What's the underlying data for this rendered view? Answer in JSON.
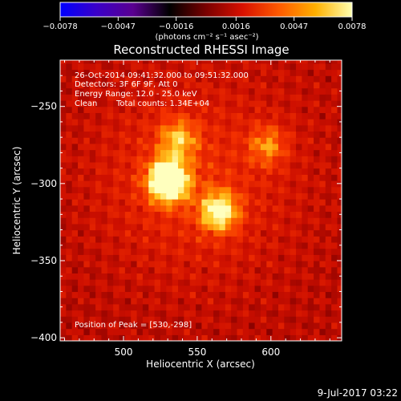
{
  "chart_data": {
    "type": "heatmap",
    "title": "Reconstructed RHESSI Image",
    "xlabel": "Heliocentric X (arcsec)",
    "ylabel": "Heliocentric Y (arcsec)",
    "xlim": [
      457,
      648
    ],
    "ylim": [
      -402,
      -220
    ],
    "x_ticks": [
      500,
      550,
      600
    ],
    "y_ticks": [
      -250,
      -300,
      -350,
      -400
    ],
    "colorbar": {
      "min": -0.0078,
      "max": 0.0078,
      "tick_values": [
        -0.0078,
        -0.0047,
        -0.0016,
        0.0016,
        0.0047,
        0.0078
      ],
      "tick_labels": [
        "−0.0078",
        "−0.0047",
        "−0.0016",
        "0.0016",
        "0.0047",
        "0.0078"
      ],
      "unit_label": "(photons cm⁻² s⁻¹ asec⁻²)"
    },
    "colormap": [
      "#0000ff",
      "#3a00c8",
      "#5a0090",
      "#000000",
      "#7a0000",
      "#d81000",
      "#ff5a00",
      "#ffb000",
      "#ffffb0"
    ],
    "sources": [
      {
        "x": 530,
        "y": -298,
        "peak": 1.0
      },
      {
        "x": 565,
        "y": -318,
        "peak": 0.62
      },
      {
        "x": 537,
        "y": -271,
        "peak": 0.4
      },
      {
        "x": 598,
        "y": -275,
        "peak": 0.35
      }
    ],
    "annotations": {
      "time_range": "26-Oct-2014 09:41:32.000 to 09:51:32.000",
      "detectors": "Detectors: 3F 6F 9F, Att 0",
      "energy_range": "Energy Range: 12.0 - 25.0 keV",
      "method": "Clean",
      "total_counts": "Total counts: 1.34E+04",
      "peak_position": "Position of Peak = [530,-298]"
    }
  },
  "footer": {
    "date_stamp": "9-Jul-2017 03:22"
  }
}
